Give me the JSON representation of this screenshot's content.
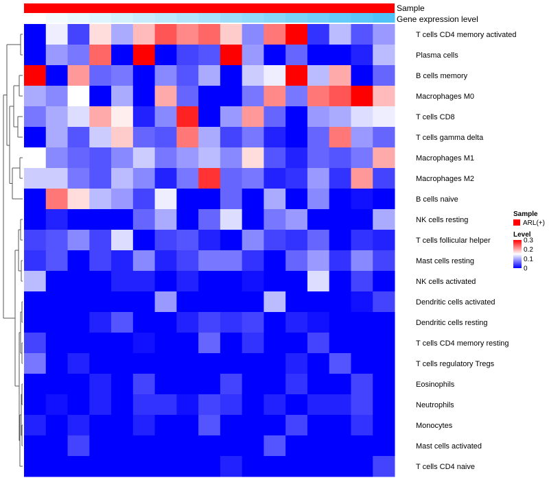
{
  "chart_data": {
    "type": "heatmap",
    "annotation_tracks": [
      "Sample",
      "Gene expression level"
    ],
    "sample_track_color": "#ff0000",
    "expression_track_colors": [
      "#ffffff",
      "#4fc3f7"
    ],
    "rows": [
      "T cells CD4 memory activated",
      "Plasma cells",
      "B cells memory",
      "Macrophages M0",
      "T cells CD8",
      "T cells gamma delta",
      "Macrophages M1",
      "Macrophages M2",
      "B cells naive",
      "NK cells resting",
      "T cells follicular helper",
      "Mast cells resting",
      "NK cells activated",
      "Dendritic cells activated",
      "Dendritic cells resting",
      "T cells CD4 memory resting",
      "T cells regulatory  Tregs",
      "Eosinophils",
      "Neutrophils",
      "Monocytes",
      "Mast cells activated",
      "T cells CD4 naive"
    ],
    "values": [
      [
        0.0,
        0.14,
        0.04,
        0.17,
        0.1,
        0.19,
        0.25,
        0.22,
        0.24,
        0.18,
        0.08,
        0.23,
        0.3,
        0.03,
        0.11,
        0.05,
        0.09
      ],
      [
        0.0,
        0.09,
        0.07,
        0.24,
        0.0,
        0.3,
        0.0,
        0.04,
        0.05,
        0.3,
        0.09,
        0.0,
        0.06,
        0.0,
        0.0,
        0.02,
        0.11
      ],
      [
        0.3,
        0.0,
        0.21,
        0.06,
        0.07,
        0.0,
        0.08,
        0.05,
        0.1,
        0.0,
        0.12,
        0.14,
        0.3,
        0.11,
        0.2,
        0.0,
        0.06
      ],
      [
        0.1,
        0.08,
        0.15,
        0.0,
        0.1,
        0.0,
        0.2,
        0.06,
        0.0,
        0.0,
        0.07,
        0.22,
        0.07,
        0.23,
        0.25,
        0.3,
        0.19
      ],
      [
        0.07,
        0.1,
        0.13,
        0.2,
        0.16,
        0.02,
        0.08,
        0.28,
        0.0,
        0.09,
        0.21,
        0.06,
        0.0,
        0.09,
        0.1,
        0.13,
        0.14
      ],
      [
        0.0,
        0.1,
        0.05,
        0.12,
        0.18,
        0.06,
        0.05,
        0.23,
        0.1,
        0.04,
        0.07,
        0.02,
        0.0,
        0.06,
        0.23,
        0.09,
        0.06
      ],
      [
        0.15,
        0.08,
        0.06,
        0.05,
        0.08,
        0.12,
        0.07,
        0.09,
        0.11,
        0.08,
        0.17,
        0.05,
        0.02,
        0.06,
        0.05,
        0.07,
        0.2
      ],
      [
        0.12,
        0.12,
        0.07,
        0.05,
        0.11,
        0.08,
        0.02,
        0.07,
        0.27,
        0.06,
        0.07,
        0.02,
        0.03,
        0.09,
        0.03,
        0.21,
        0.04
      ],
      [
        0.0,
        0.23,
        0.17,
        0.11,
        0.09,
        0.04,
        0.14,
        0.0,
        0.0,
        0.06,
        0.0,
        0.1,
        0.0,
        0.08,
        0.0,
        0.01,
        0.0
      ],
      [
        0.0,
        0.02,
        0.0,
        0.0,
        0.0,
        0.06,
        0.1,
        0.0,
        0.06,
        0.13,
        0.0,
        0.07,
        0.09,
        0.0,
        0.0,
        0.0,
        0.1
      ],
      [
        0.04,
        0.05,
        0.08,
        0.04,
        0.13,
        0.0,
        0.04,
        0.05,
        0.02,
        0.0,
        0.08,
        0.04,
        0.03,
        0.06,
        0.0,
        0.03,
        0.02
      ],
      [
        0.03,
        0.05,
        0.0,
        0.04,
        0.02,
        0.08,
        0.02,
        0.04,
        0.07,
        0.07,
        0.03,
        0.0,
        0.06,
        0.09,
        0.03,
        0.08,
        0.04
      ],
      [
        0.11,
        0.0,
        0.0,
        0.0,
        0.02,
        0.02,
        0.0,
        0.02,
        0.0,
        0.0,
        0.01,
        0.0,
        0.0,
        0.13,
        0.0,
        0.04,
        0.0
      ],
      [
        0.0,
        0.0,
        0.0,
        0.0,
        0.0,
        0.0,
        0.09,
        0.0,
        0.0,
        0.0,
        0.0,
        0.11,
        0.0,
        0.0,
        0.0,
        0.01,
        0.04
      ],
      [
        0.0,
        0.0,
        0.0,
        0.02,
        0.05,
        0.0,
        0.0,
        0.02,
        0.04,
        0.03,
        0.04,
        0.0,
        0.02,
        0.01,
        0.0,
        0.0,
        0.0
      ],
      [
        0.04,
        0.0,
        0.0,
        0.0,
        0.0,
        0.01,
        0.0,
        0.0,
        0.06,
        0.0,
        0.03,
        0.0,
        0.0,
        0.04,
        0.0,
        0.0,
        0.0
      ],
      [
        0.07,
        0.0,
        0.02,
        0.0,
        0.0,
        0.0,
        0.0,
        0.0,
        0.0,
        0.0,
        0.0,
        0.0,
        0.02,
        0.0,
        0.05,
        0.0,
        0.0
      ],
      [
        0.0,
        0.0,
        0.0,
        0.02,
        0.0,
        0.04,
        0.0,
        0.0,
        0.0,
        0.04,
        0.0,
        0.0,
        0.03,
        0.0,
        0.0,
        0.04,
        0.0
      ],
      [
        0.0,
        0.01,
        0.0,
        0.02,
        0.0,
        0.03,
        0.03,
        0.01,
        0.04,
        0.03,
        0.0,
        0.02,
        0.0,
        0.02,
        0.02,
        0.04,
        0.0
      ],
      [
        0.02,
        0.0,
        0.02,
        0.0,
        0.0,
        0.02,
        0.0,
        0.0,
        0.05,
        0.0,
        0.0,
        0.0,
        0.04,
        0.0,
        0.0,
        0.03,
        0.0
      ],
      [
        0.0,
        0.0,
        0.04,
        0.0,
        0.0,
        0.0,
        0.0,
        0.0,
        0.0,
        0.0,
        0.0,
        0.05,
        0.0,
        0.0,
        0.0,
        0.0,
        0.0
      ],
      [
        0.0,
        0.0,
        0.0,
        0.0,
        0.0,
        0.0,
        0.0,
        0.0,
        0.0,
        0.02,
        0.0,
        0.0,
        0.0,
        0.0,
        0.0,
        0.0,
        0.04
      ]
    ],
    "color_scale": {
      "min": 0,
      "mid": 0.15,
      "max": 0.3,
      "low_color": "#0000ff",
      "mid_color": "#ffffff",
      "high_color": "#ff0000"
    },
    "legend": {
      "sample_title": "Sample",
      "sample_label": "ARL(+)",
      "level_title": "Level",
      "level_ticks": [
        "0.3",
        "0.2",
        "0.1",
        "0"
      ]
    }
  }
}
